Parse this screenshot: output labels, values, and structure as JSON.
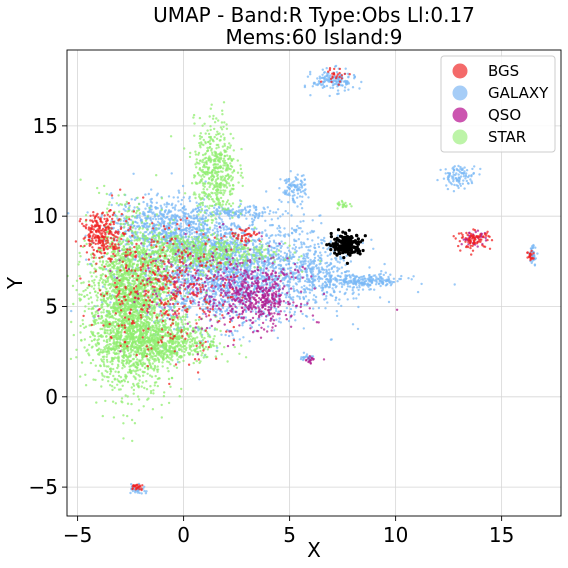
{
  "chart_data": {
    "type": "scatter",
    "title_line1": "UMAP  -  Band:R Type:Obs Ll:0.17",
    "title_line2": "Mems:60 Island:9",
    "xlabel": "X",
    "ylabel": "Y",
    "xlim": [
      -5.5,
      17.8
    ],
    "ylim": [
      -6.6,
      19.2
    ],
    "x_ticks": [
      -5,
      0,
      5,
      10,
      15
    ],
    "x_tick_labels": [
      "−5",
      "0",
      "5",
      "10",
      "15"
    ],
    "y_ticks": [
      -5,
      0,
      5,
      10,
      15
    ],
    "y_tick_labels": [
      "−5",
      "0",
      "5",
      "10",
      "15"
    ],
    "grid": true,
    "legend_placement": "top-right",
    "series": [
      {
        "name": "GALAXY",
        "color": "#7ab8f5",
        "clusters": [
          {
            "cx": 2.0,
            "cy": 7.0,
            "sx": 2.2,
            "sy": 1.5,
            "n": 2200
          },
          {
            "cx": -1.0,
            "cy": 9.5,
            "sx": 1.2,
            "sy": 0.8,
            "n": 600
          },
          {
            "cx": 6.5,
            "cy": 6.8,
            "sx": 1.0,
            "sy": 0.9,
            "n": 300
          },
          {
            "cx": 8.5,
            "cy": 6.4,
            "sx": 1.0,
            "sy": 0.2,
            "n": 200
          },
          {
            "cx": 7.1,
            "cy": 17.5,
            "sx": 0.5,
            "sy": 0.3,
            "n": 150
          },
          {
            "cx": 5.2,
            "cy": 11.5,
            "sx": 0.3,
            "sy": 0.4,
            "n": 100
          },
          {
            "cx": 2.5,
            "cy": 10.2,
            "sx": 0.9,
            "sy": 0.15,
            "n": 120
          },
          {
            "cx": 13.0,
            "cy": 12.2,
            "sx": 0.4,
            "sy": 0.3,
            "n": 100
          },
          {
            "cx": 16.5,
            "cy": 7.9,
            "sx": 0.1,
            "sy": 0.25,
            "n": 40
          },
          {
            "cx": -2.2,
            "cy": -5.1,
            "sx": 0.2,
            "sy": 0.15,
            "n": 30
          },
          {
            "cx": 5.8,
            "cy": 2.2,
            "sx": 0.15,
            "sy": 0.1,
            "n": 20
          }
        ]
      },
      {
        "name": "STAR",
        "color": "#90ee70",
        "clusters": [
          {
            "cx": -2.5,
            "cy": 5.0,
            "sx": 1.0,
            "sy": 2.2,
            "n": 2400
          },
          {
            "cx": -1.0,
            "cy": 3.0,
            "sx": 1.3,
            "sy": 0.6,
            "n": 700
          },
          {
            "cx": 0.5,
            "cy": 8.0,
            "sx": 1.8,
            "sy": 0.5,
            "n": 600
          },
          {
            "cx": 1.5,
            "cy": 12.5,
            "sx": 0.5,
            "sy": 1.4,
            "n": 500
          },
          {
            "cx": 7.6,
            "cy": 10.6,
            "sx": 0.2,
            "sy": 0.1,
            "n": 20
          }
        ]
      },
      {
        "name": "QSO",
        "color": "#b0198f",
        "clusters": [
          {
            "cx": 3.5,
            "cy": 5.5,
            "sx": 0.9,
            "sy": 0.8,
            "n": 350
          },
          {
            "cx": 1.5,
            "cy": 6.0,
            "sx": 2.0,
            "sy": 1.3,
            "n": 300
          },
          {
            "cx": 13.7,
            "cy": 8.8,
            "sx": 0.3,
            "sy": 0.2,
            "n": 40
          },
          {
            "cx": 6.0,
            "cy": 2.0,
            "sx": 0.1,
            "sy": 0.1,
            "n": 15
          }
        ]
      },
      {
        "name": "BGS",
        "color": "#f02020",
        "clusters": [
          {
            "cx": -3.8,
            "cy": 9.0,
            "sx": 0.5,
            "sy": 0.6,
            "n": 250
          },
          {
            "cx": -1.0,
            "cy": 6.0,
            "sx": 1.6,
            "sy": 1.8,
            "n": 400
          },
          {
            "cx": 13.7,
            "cy": 8.7,
            "sx": 0.4,
            "sy": 0.25,
            "n": 80
          },
          {
            "cx": 7.2,
            "cy": 17.8,
            "sx": 0.3,
            "sy": 0.2,
            "n": 25
          },
          {
            "cx": -2.2,
            "cy": -5.0,
            "sx": 0.2,
            "sy": 0.1,
            "n": 25
          },
          {
            "cx": 16.4,
            "cy": 7.8,
            "sx": 0.1,
            "sy": 0.2,
            "n": 20
          },
          {
            "cx": 2.8,
            "cy": 9.0,
            "sx": 0.4,
            "sy": 0.2,
            "n": 40
          }
        ]
      },
      {
        "name": "Island",
        "color": "#000000",
        "clusters": [
          {
            "cx": 7.7,
            "cy": 8.4,
            "sx": 0.35,
            "sy": 0.3,
            "n": 180
          }
        ]
      }
    ],
    "legend": [
      {
        "label": "BGS",
        "color": "#f46a6a"
      },
      {
        "label": "GALAXY",
        "color": "#a6cdf7"
      },
      {
        "label": "QSO",
        "color": "#cc55b0"
      },
      {
        "label": "STAR",
        "color": "#bdf4a8"
      }
    ]
  }
}
